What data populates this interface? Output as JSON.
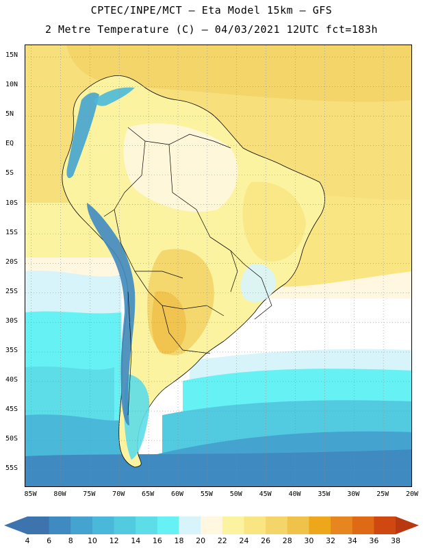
{
  "header": {
    "title_line1": "CPTEC/INPE/MCT –  Eta Model 15km – GFS",
    "title_line2": "2 Metre Temperature (C) – 04/03/2021 12UTC fct=183h"
  },
  "map": {
    "lat_labels": [
      "15N",
      "10N",
      "5N",
      "EQ",
      "5S",
      "10S",
      "15S",
      "20S",
      "25S",
      "30S",
      "35S",
      "40S",
      "45S",
      "50S",
      "55S"
    ],
    "lon_labels": [
      "85W",
      "80W",
      "75W",
      "70W",
      "65W",
      "60W",
      "55W",
      "50W",
      "45W",
      "40W",
      "35W",
      "30W",
      "25W",
      "20W"
    ],
    "border_color": "#000000",
    "grid_color": "#8a8a8a"
  },
  "legend": {
    "ticks": [
      "4",
      "6",
      "8",
      "10",
      "12",
      "14",
      "16",
      "18",
      "20",
      "22",
      "24",
      "26",
      "28",
      "30",
      "32",
      "34",
      "36",
      "38"
    ],
    "colors": [
      "#3d74ad",
      "#3f8ac0",
      "#45a3cf",
      "#4ab9d9",
      "#52cbe0",
      "#5ddde8",
      "#66f2f4",
      "#d8f4fb",
      "#fff7e0",
      "#fbf3a0",
      "#f9e682",
      "#f3d56a",
      "#efc24a",
      "#eea71a",
      "#e7861f",
      "#de6a16",
      "#cf4810",
      "#b83810"
    ]
  },
  "chart_data": {
    "type": "heatmap",
    "title": "CPTEC/INPE/MCT –  Eta Model 15km – GFS",
    "subtitle": "2 Metre Temperature (C) – 04/03/2021 12UTC fct=183h",
    "variable": "2 Metre Temperature (C)",
    "xlim": [
      -86,
      -20
    ],
    "ylim": [
      -58,
      17
    ],
    "x_ticks": [
      -85,
      -80,
      -75,
      -70,
      -65,
      -60,
      -55,
      -50,
      -45,
      -40,
      -35,
      -30,
      -25,
      -20
    ],
    "y_ticks": [
      15,
      10,
      5,
      0,
      -5,
      -10,
      -15,
      -20,
      -25,
      -30,
      -35,
      -40,
      -45,
      -50,
      -55
    ],
    "colorbar_levels": [
      4,
      6,
      8,
      10,
      12,
      14,
      16,
      18,
      20,
      22,
      24,
      26,
      28,
      30,
      32,
      34,
      36,
      38
    ],
    "grid": true
  }
}
